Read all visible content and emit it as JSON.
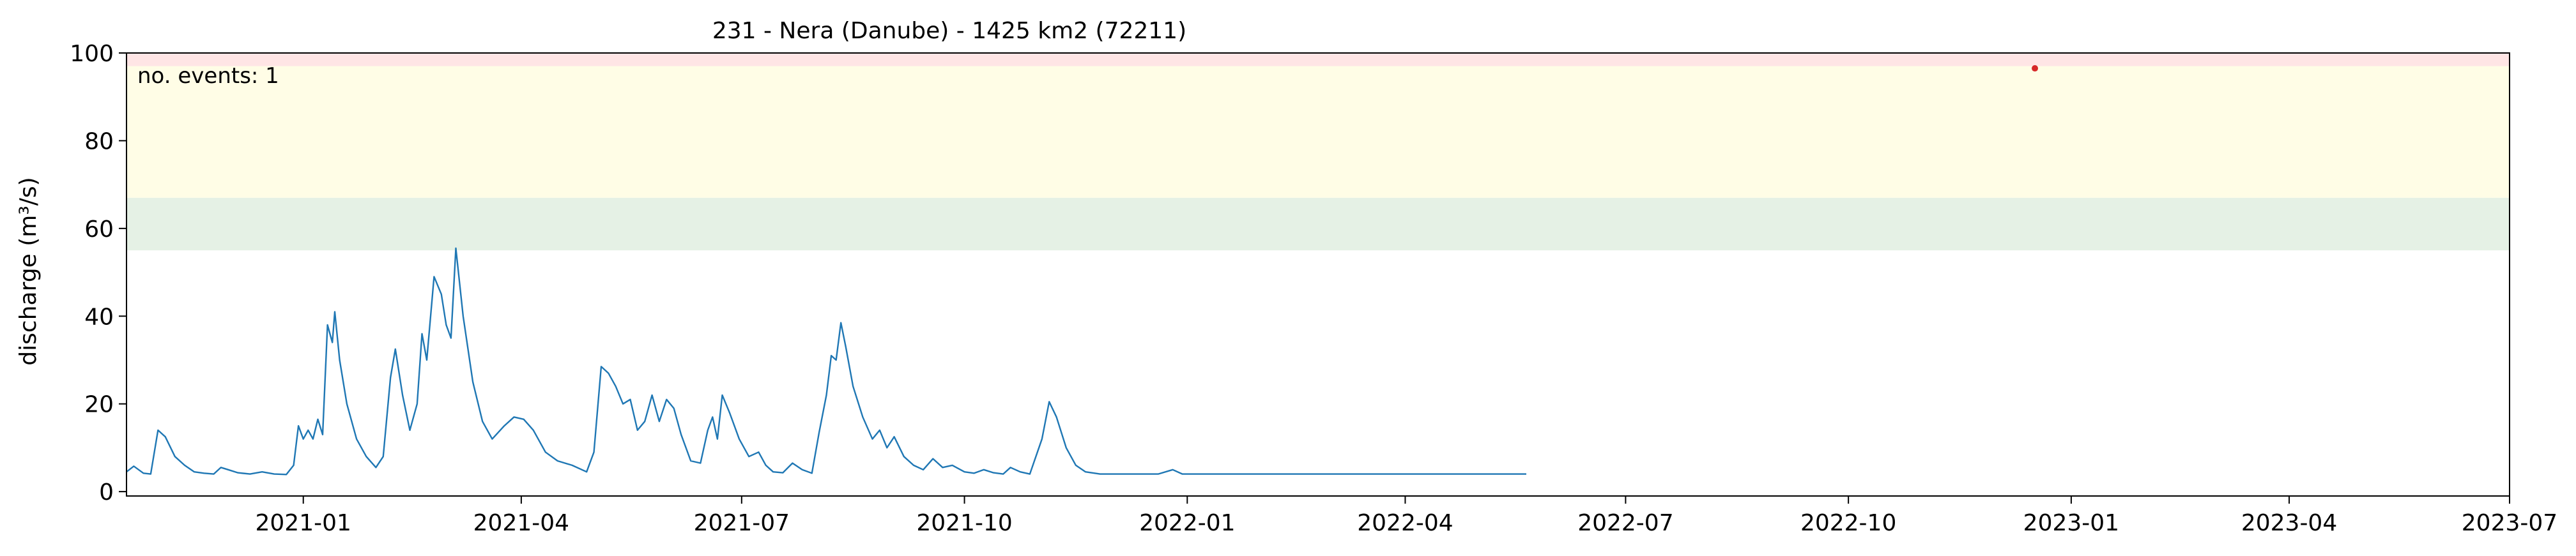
{
  "chart_data": {
    "type": "line",
    "title": "231 - Nera (Danube) - 1425 km2 (72211)",
    "xlabel": "",
    "ylabel": "discharge (m³/s)",
    "xlim": [
      "2020-10-20",
      "2023-07-01"
    ],
    "ylim": [
      -1,
      100
    ],
    "yticks": [
      0,
      20,
      40,
      60,
      80,
      100
    ],
    "xticks": [
      {
        "date": "2021-01-01",
        "label": "2021-01"
      },
      {
        "date": "2021-04-01",
        "label": "2021-04"
      },
      {
        "date": "2021-07-01",
        "label": "2021-07"
      },
      {
        "date": "2021-10-01",
        "label": "2021-10"
      },
      {
        "date": "2022-01-01",
        "label": "2022-01"
      },
      {
        "date": "2022-04-01",
        "label": "2022-04"
      },
      {
        "date": "2022-07-01",
        "label": "2022-07"
      },
      {
        "date": "2022-10-01",
        "label": "2022-10"
      },
      {
        "date": "2023-01-01",
        "label": "2023-01"
      },
      {
        "date": "2023-04-01",
        "label": "2023-04"
      },
      {
        "date": "2023-07-01",
        "label": "2023-07"
      }
    ],
    "grid": false,
    "bands": [
      {
        "from": 55,
        "to": 67,
        "color": "#e5f1e5"
      },
      {
        "from": 67,
        "to": 97,
        "color": "#fffde6"
      },
      {
        "from": 97,
        "to": 100,
        "color": "#ffe5e5"
      }
    ],
    "annotation": {
      "text": "no. events: 1",
      "color": "#cc0000"
    },
    "events": [
      {
        "x": "2022-12-17",
        "y": 96.5,
        "color": "#d62728"
      }
    ],
    "series": [
      {
        "color": "#1f77b4",
        "points": [
          [
            "2020-10-20",
            4.5
          ],
          [
            "2020-10-23",
            5.8
          ],
          [
            "2020-10-27",
            4.2
          ],
          [
            "2020-10-30",
            4.0
          ],
          [
            "2020-11-02",
            14.0
          ],
          [
            "2020-11-05",
            12.5
          ],
          [
            "2020-11-09",
            8.0
          ],
          [
            "2020-11-13",
            6.0
          ],
          [
            "2020-11-17",
            4.5
          ],
          [
            "2020-11-21",
            4.2
          ],
          [
            "2020-11-25",
            4.0
          ],
          [
            "2020-11-28",
            5.5
          ],
          [
            "2020-12-01",
            5.0
          ],
          [
            "2020-12-05",
            4.3
          ],
          [
            "2020-12-10",
            4.0
          ],
          [
            "2020-12-15",
            4.5
          ],
          [
            "2020-12-20",
            4.0
          ],
          [
            "2020-12-25",
            3.9
          ],
          [
            "2020-12-28",
            6.0
          ],
          [
            "2020-12-30",
            15.0
          ],
          [
            "2021-01-01",
            12.0
          ],
          [
            "2021-01-03",
            14.0
          ],
          [
            "2021-01-05",
            12.0
          ],
          [
            "2021-01-07",
            16.5
          ],
          [
            "2021-01-09",
            13.0
          ],
          [
            "2021-01-11",
            38.0
          ],
          [
            "2021-01-13",
            34.0
          ],
          [
            "2021-01-14",
            41.0
          ],
          [
            "2021-01-16",
            30.0
          ],
          [
            "2021-01-19",
            20.0
          ],
          [
            "2021-01-23",
            12.0
          ],
          [
            "2021-01-27",
            8.0
          ],
          [
            "2021-01-31",
            5.5
          ],
          [
            "2021-02-03",
            8.0
          ],
          [
            "2021-02-06",
            26.0
          ],
          [
            "2021-02-08",
            32.5
          ],
          [
            "2021-02-11",
            22.0
          ],
          [
            "2021-02-14",
            14.0
          ],
          [
            "2021-02-17",
            20.0
          ],
          [
            "2021-02-19",
            36.0
          ],
          [
            "2021-02-21",
            30.0
          ],
          [
            "2021-02-24",
            49.0
          ],
          [
            "2021-02-27",
            45.0
          ],
          [
            "2021-03-01",
            38.0
          ],
          [
            "2021-03-03",
            35.0
          ],
          [
            "2021-03-05",
            55.5
          ],
          [
            "2021-03-08",
            40.0
          ],
          [
            "2021-03-12",
            25.0
          ],
          [
            "2021-03-16",
            16.0
          ],
          [
            "2021-03-20",
            12.0
          ],
          [
            "2021-03-25",
            15.0
          ],
          [
            "2021-03-29",
            17.0
          ],
          [
            "2021-04-02",
            16.5
          ],
          [
            "2021-04-06",
            14.0
          ],
          [
            "2021-04-11",
            9.0
          ],
          [
            "2021-04-16",
            7.0
          ],
          [
            "2021-04-22",
            6.0
          ],
          [
            "2021-04-28",
            4.5
          ],
          [
            "2021-05-01",
            9.0
          ],
          [
            "2021-05-04",
            28.5
          ],
          [
            "2021-05-07",
            27.0
          ],
          [
            "2021-05-10",
            24.0
          ],
          [
            "2021-05-13",
            20.0
          ],
          [
            "2021-05-16",
            21.0
          ],
          [
            "2021-05-19",
            14.0
          ],
          [
            "2021-05-22",
            16.0
          ],
          [
            "2021-05-25",
            22.0
          ],
          [
            "2021-05-28",
            16.0
          ],
          [
            "2021-05-31",
            21.0
          ],
          [
            "2021-06-03",
            19.0
          ],
          [
            "2021-06-06",
            13.0
          ],
          [
            "2021-06-10",
            7.0
          ],
          [
            "2021-06-14",
            6.5
          ],
          [
            "2021-06-17",
            14.0
          ],
          [
            "2021-06-19",
            17.0
          ],
          [
            "2021-06-21",
            12.0
          ],
          [
            "2021-06-23",
            22.0
          ],
          [
            "2021-06-26",
            18.0
          ],
          [
            "2021-06-30",
            12.0
          ],
          [
            "2021-07-04",
            8.0
          ],
          [
            "2021-07-08",
            9.0
          ],
          [
            "2021-07-11",
            6.0
          ],
          [
            "2021-07-14",
            4.5
          ],
          [
            "2021-07-18",
            4.3
          ],
          [
            "2021-07-22",
            6.5
          ],
          [
            "2021-07-26",
            5.0
          ],
          [
            "2021-07-30",
            4.2
          ],
          [
            "2021-08-02",
            13.5
          ],
          [
            "2021-08-05",
            22.0
          ],
          [
            "2021-08-07",
            31.0
          ],
          [
            "2021-08-09",
            30.0
          ],
          [
            "2021-08-11",
            38.5
          ],
          [
            "2021-08-13",
            33.0
          ],
          [
            "2021-08-16",
            24.0
          ],
          [
            "2021-08-20",
            17.0
          ],
          [
            "2021-08-24",
            12.0
          ],
          [
            "2021-08-27",
            14.0
          ],
          [
            "2021-08-30",
            10.0
          ],
          [
            "2021-09-02",
            12.5
          ],
          [
            "2021-09-06",
            8.0
          ],
          [
            "2021-09-10",
            6.0
          ],
          [
            "2021-09-14",
            5.0
          ],
          [
            "2021-09-18",
            7.5
          ],
          [
            "2021-09-22",
            5.5
          ],
          [
            "2021-09-26",
            6.0
          ],
          [
            "2021-10-01",
            4.5
          ],
          [
            "2021-10-05",
            4.2
          ],
          [
            "2021-10-09",
            5.0
          ],
          [
            "2021-10-13",
            4.3
          ],
          [
            "2021-10-17",
            4.0
          ],
          [
            "2021-10-20",
            5.5
          ],
          [
            "2021-10-24",
            4.5
          ],
          [
            "2021-10-28",
            4.0
          ],
          [
            "2021-11-02",
            12.0
          ],
          [
            "2021-11-05",
            20.5
          ],
          [
            "2021-11-08",
            17.0
          ],
          [
            "2021-11-12",
            10.0
          ],
          [
            "2021-11-16",
            6.0
          ],
          [
            "2021-11-20",
            4.5
          ],
          [
            "2021-11-26",
            4.0
          ],
          [
            "2021-12-02",
            4.0
          ],
          [
            "2021-12-08",
            4.0
          ],
          [
            "2021-12-14",
            4.0
          ],
          [
            "2021-12-20",
            4.0
          ],
          [
            "2021-12-26",
            5.0
          ],
          [
            "2021-12-30",
            4.0
          ],
          [
            "2022-01-05",
            4.0
          ],
          [
            "2022-01-11",
            4.0
          ],
          [
            "2022-01-17",
            4.0
          ],
          [
            "2022-01-23",
            4.0
          ],
          [
            "2022-01-29",
            4.0
          ],
          [
            "2022-02-04",
            4.0
          ],
          [
            "2022-02-10",
            4.0
          ],
          [
            "2022-02-16",
            4.0
          ],
          [
            "2022-02-22",
            4.0
          ],
          [
            "2022-02-28",
            4.0
          ],
          [
            "2022-03-06",
            4.0
          ],
          [
            "2022-03-12",
            4.0
          ],
          [
            "2022-03-18",
            4.0
          ],
          [
            "2022-03-24",
            4.0
          ],
          [
            "2022-03-30",
            4.0
          ],
          [
            "2022-04-05",
            4.0
          ],
          [
            "2022-04-11",
            4.0
          ],
          [
            "2022-04-17",
            4.0
          ],
          [
            "2022-04-23",
            4.0
          ],
          [
            "2022-04-29",
            4.0
          ],
          [
            "2022-05-05",
            4.0
          ],
          [
            "2022-05-11",
            4.0
          ],
          [
            "2022-05-17",
            4.0
          ],
          [
            "2022-05-21",
            4.0
          ]
        ]
      }
    ]
  }
}
